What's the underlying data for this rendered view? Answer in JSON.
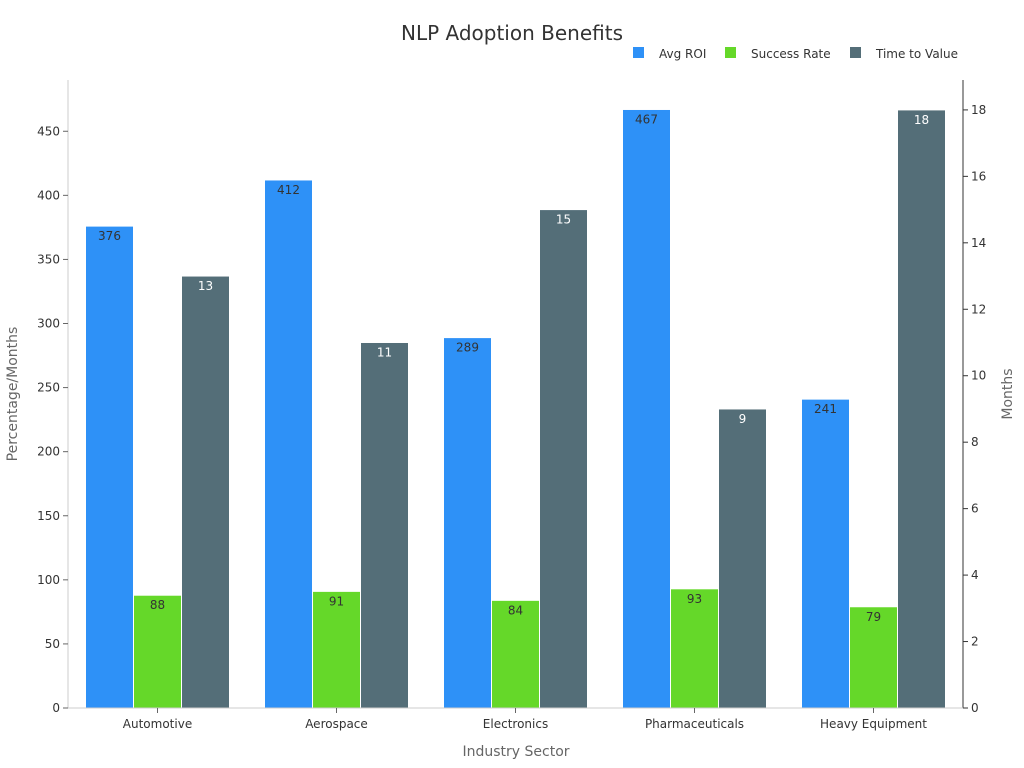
{
  "chart_data": {
    "type": "bar",
    "title": "NLP Adoption Benefits",
    "xlabel": "Industry Sector",
    "ylabel": "Percentage/Months",
    "y2label": "Months",
    "categories": [
      "Automotive",
      "Aerospace",
      "Electronics",
      "Pharmaceuticals",
      "Heavy Equipment"
    ],
    "series": [
      {
        "name": "Avg ROI",
        "axis": "left",
        "color": "#2e91f7",
        "label_color": "#333333",
        "values": [
          376,
          412,
          289,
          467,
          241
        ]
      },
      {
        "name": "Success Rate",
        "axis": "left",
        "color": "#65d829",
        "label_color": "#333333",
        "values": [
          88,
          91,
          84,
          93,
          79
        ]
      },
      {
        "name": "Time to Value",
        "axis": "right",
        "color": "#546e78",
        "label_color": "#ffffff",
        "values": [
          13,
          11,
          15,
          9,
          18
        ]
      }
    ],
    "ylim": [
      0,
      490
    ],
    "yticks": [
      0,
      50,
      100,
      150,
      200,
      250,
      300,
      350,
      400,
      450
    ],
    "y2lim": [
      0,
      18.9
    ],
    "y2ticks": [
      0,
      2,
      4,
      6,
      8,
      10,
      12,
      14,
      16,
      18
    ],
    "legend_position": "top-right",
    "grid": false
  }
}
